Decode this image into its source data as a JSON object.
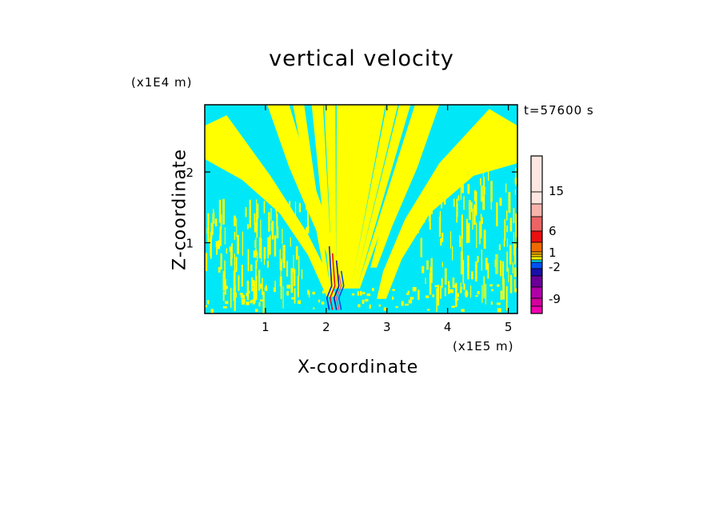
{
  "chart_data": {
    "type": "heatmap",
    "title": "vertical velocity",
    "xlabel": "X-coordinate",
    "ylabel": "Z-coordinate",
    "x_multiplier": "(x1E5 m)",
    "y_multiplier": "(x1E4 m)",
    "time_label": "t=57600 s",
    "xlim": [
      0,
      5.15
    ],
    "ylim": [
      0,
      2.95
    ],
    "x_ticks": [
      1,
      2,
      3,
      4,
      5
    ],
    "x_tick_labels": [
      "1",
      "2",
      "3",
      "4",
      "5"
    ],
    "y_ticks": [
      1,
      2
    ],
    "y_tick_labels": [
      "1",
      "2"
    ],
    "background_color": "#00e8f8",
    "positive_color": "#ffff00",
    "colorbar": {
      "levels_top_to_bottom": [
        {
          "color": "#ffe6e0"
        },
        {
          "color": "#ffe6e0"
        },
        {
          "color": "#f8b4ac"
        },
        {
          "color": "#ec6464"
        },
        {
          "color": "#e81010"
        },
        {
          "color": "#ee6a00"
        },
        {
          "color": "#ffb000"
        },
        {
          "color": "#ffd000"
        },
        {
          "color": "#ffff00"
        },
        {
          "color": "#00e8f8"
        },
        {
          "color": "#0050f0"
        },
        {
          "color": "#1a10a8"
        },
        {
          "color": "#6a0098"
        },
        {
          "color": "#b000a8"
        },
        {
          "color": "#d2009c"
        },
        {
          "color": "#f000b0"
        }
      ],
      "tick_labels": [
        "15",
        "6",
        "1",
        "-2",
        "-9"
      ],
      "tick_values": [
        15,
        6,
        1,
        -2,
        -9
      ]
    }
  }
}
